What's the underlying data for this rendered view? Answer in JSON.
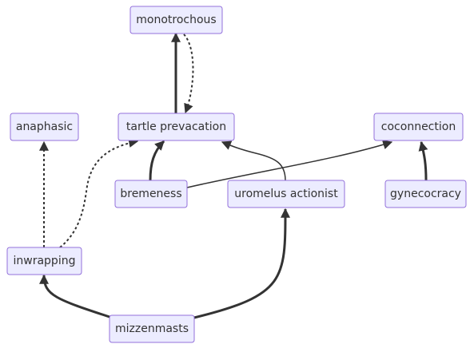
{
  "diagram": {
    "type": "flowchart",
    "colors": {
      "node_fill": "#ECECFF",
      "node_stroke": "#9370DB",
      "text": "#333333",
      "edge": "#333333",
      "background": "#ffffff"
    },
    "nodes": [
      {
        "id": "monotrochous",
        "label": "monotrochous"
      },
      {
        "id": "anaphasic",
        "label": "anaphasic"
      },
      {
        "id": "tartle_prevacation",
        "label": "tartle prevacation"
      },
      {
        "id": "coconnection",
        "label": "coconnection"
      },
      {
        "id": "bremeness",
        "label": "bremeness"
      },
      {
        "id": "uromelus_actionist",
        "label": "uromelus actionist"
      },
      {
        "id": "gynecocracy",
        "label": "gynecocracy"
      },
      {
        "id": "inwrapping",
        "label": "inwrapping"
      },
      {
        "id": "mizzenmasts",
        "label": "mizzenmasts"
      }
    ],
    "edges": [
      {
        "from": "tartle_prevacation",
        "to": "monotrochous",
        "style": "thick"
      },
      {
        "from": "monotrochous",
        "to": "tartle_prevacation",
        "style": "dotted"
      },
      {
        "from": "inwrapping",
        "to": "anaphasic",
        "style": "dotted"
      },
      {
        "from": "inwrapping",
        "to": "tartle_prevacation",
        "style": "dotted"
      },
      {
        "from": "bremeness",
        "to": "tartle_prevacation",
        "style": "thick"
      },
      {
        "from": "uromelus_actionist",
        "to": "tartle_prevacation",
        "style": "solid"
      },
      {
        "from": "bremeness",
        "to": "coconnection",
        "style": "solid"
      },
      {
        "from": "gynecocracy",
        "to": "coconnection",
        "style": "thick"
      },
      {
        "from": "mizzenmasts",
        "to": "inwrapping",
        "style": "thick"
      },
      {
        "from": "mizzenmasts",
        "to": "uromelus_actionist",
        "style": "thick"
      }
    ]
  }
}
